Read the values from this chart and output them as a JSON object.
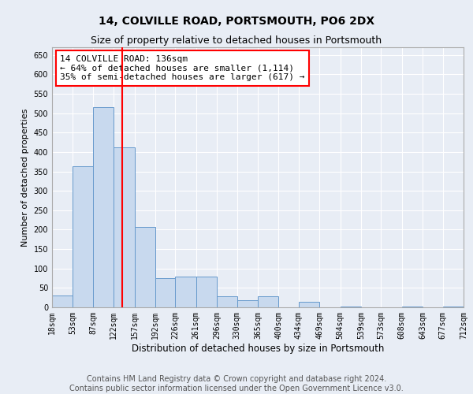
{
  "title": "14, COLVILLE ROAD, PORTSMOUTH, PO6 2DX",
  "subtitle": "Size of property relative to detached houses in Portsmouth",
  "xlabel": "Distribution of detached houses by size in Portsmouth",
  "ylabel": "Number of detached properties",
  "bar_color": "#c8d9ee",
  "bar_edge_color": "#6699cc",
  "background_color": "#e8edf5",
  "grid_color": "#ffffff",
  "red_line_x": 136,
  "annotation_text": "14 COLVILLE ROAD: 136sqm\n← 64% of detached houses are smaller (1,114)\n35% of semi-detached houses are larger (617) →",
  "bin_edges": [
    18,
    53,
    87,
    122,
    157,
    192,
    226,
    261,
    296,
    330,
    365,
    400,
    434,
    469,
    504,
    539,
    573,
    608,
    643,
    677,
    712
  ],
  "bar_heights": [
    30,
    363,
    515,
    412,
    207,
    75,
    80,
    80,
    28,
    18,
    28,
    0,
    15,
    0,
    3,
    0,
    0,
    3,
    0,
    3
  ],
  "ylim": [
    0,
    670
  ],
  "yticks": [
    0,
    50,
    100,
    150,
    200,
    250,
    300,
    350,
    400,
    450,
    500,
    550,
    600,
    650
  ],
  "footer_text": "Contains HM Land Registry data © Crown copyright and database right 2024.\nContains public sector information licensed under the Open Government Licence v3.0.",
  "title_fontsize": 10,
  "subtitle_fontsize": 9,
  "xlabel_fontsize": 8.5,
  "ylabel_fontsize": 8,
  "tick_fontsize": 7,
  "annotation_fontsize": 8,
  "footer_fontsize": 7
}
